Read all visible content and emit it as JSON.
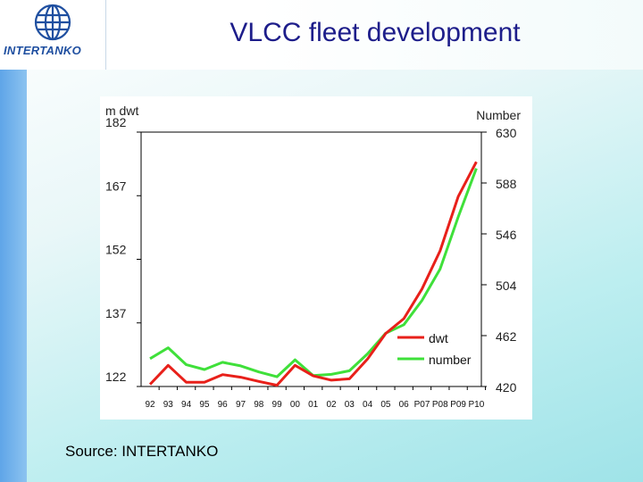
{
  "slide": {
    "title": "VLCC fleet development",
    "logo_text": "INTERTANKO",
    "source": "Source: INTERTANKO"
  },
  "colors": {
    "dwt": "#e8201a",
    "number": "#3fe03a",
    "title": "#1d1d8a",
    "logo": "#1f4fa0"
  },
  "chart_data": {
    "type": "line",
    "title": "",
    "xlabel": "",
    "ylabel": "m dwt",
    "ylabel_right": "Number",
    "categories": [
      "92",
      "93",
      "94",
      "95",
      "96",
      "97",
      "98",
      "99",
      "00",
      "01",
      "02",
      "03",
      "04",
      "05",
      "06",
      "P07",
      "P08",
      "P09",
      "P10"
    ],
    "ylim": [
      122,
      182
    ],
    "y_ticks": [
      122,
      137,
      152,
      167,
      182
    ],
    "y2lim": [
      420,
      630
    ],
    "y2_ticks": [
      420,
      462,
      504,
      546,
      588,
      630
    ],
    "legend_position": "inside-bottom-right",
    "series": [
      {
        "name": "dwt",
        "axis": "left",
        "values": [
          122.5,
          127,
          123,
          123,
          124.8,
          124.2,
          123.2,
          122.3,
          127,
          124.5,
          123.5,
          123.8,
          128.5,
          134.5,
          138,
          145,
          154,
          166.8,
          175
        ]
      },
      {
        "name": "number",
        "axis": "right",
        "values": [
          443,
          452,
          438,
          434,
          440,
          437,
          432,
          428,
          442,
          429,
          430,
          433,
          447,
          464,
          471,
          491,
          517,
          560,
          600
        ]
      }
    ]
  }
}
